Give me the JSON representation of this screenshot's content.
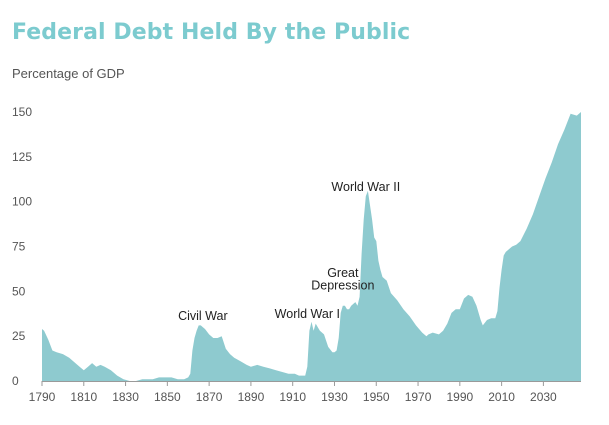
{
  "header": {
    "title": "Federal Debt Held By the Public"
  },
  "chart_data": {
    "type": "area",
    "title": "Federal Debt Held By the Public",
    "ylabel": "Percentage of GDP",
    "xlabel": "",
    "xlim": [
      1790,
      2048
    ],
    "ylim": [
      0,
      150
    ],
    "xticks": [
      1790,
      1810,
      1830,
      1850,
      1870,
      1890,
      1910,
      1930,
      1950,
      1970,
      1990,
      2010,
      2030
    ],
    "yticks": [
      0,
      25,
      50,
      75,
      100,
      125,
      150
    ],
    "grid": false,
    "legend": "none",
    "color": "#8ecacf",
    "annotations": [
      {
        "text": "World War II",
        "x": 1945,
        "y": 106
      },
      {
        "text": "Great",
        "x": 1934,
        "y": 58
      },
      {
        "text": "Depression",
        "x": 1934,
        "y": 51
      },
      {
        "text": "Civil War",
        "x": 1867,
        "y": 34
      },
      {
        "text": "World War I",
        "x": 1917,
        "y": 35
      }
    ],
    "series": [
      {
        "x": [
          1790,
          1791,
          1793,
          1795,
          1797,
          1800,
          1803,
          1806,
          1808,
          1810,
          1812,
          1814,
          1816,
          1818,
          1820,
          1823,
          1826,
          1829,
          1832,
          1835,
          1838,
          1841,
          1843,
          1846,
          1849,
          1852,
          1855,
          1858,
          1860,
          1861,
          1862,
          1863,
          1864,
          1865,
          1866,
          1867,
          1868,
          1870,
          1872,
          1874,
          1876,
          1878,
          1880,
          1882,
          1885,
          1888,
          1890,
          1893,
          1896,
          1899,
          1902,
          1905,
          1908,
          1911,
          1913,
          1915,
          1916,
          1917,
          1918,
          1919,
          1920,
          1921,
          1922,
          1923,
          1925,
          1927,
          1929,
          1930,
          1931,
          1932,
          1933,
          1934,
          1935,
          1936,
          1937,
          1938,
          1939,
          1940,
          1941,
          1942,
          1943,
          1944,
          1945,
          1946,
          1947,
          1948,
          1949,
          1950,
          1951,
          1952,
          1953,
          1955,
          1957,
          1960,
          1963,
          1966,
          1969,
          1972,
          1974,
          1975,
          1977,
          1980,
          1982,
          1984,
          1986,
          1988,
          1990,
          1992,
          1994,
          1996,
          1998,
          2000,
          2001,
          2003,
          2005,
          2007,
          2008,
          2009,
          2010,
          2011,
          2012,
          2013,
          2015,
          2017,
          2019,
          2022,
          2025,
          2028,
          2031,
          2034,
          2037,
          2040,
          2043,
          2046,
          2048
        ],
        "values": [
          29,
          28,
          23,
          17,
          16,
          15,
          13,
          10,
          8,
          6,
          8,
          10,
          8,
          9,
          8,
          6,
          3,
          1,
          0,
          0,
          1,
          1,
          1,
          2,
          2,
          2,
          1,
          1,
          2,
          4,
          17,
          24,
          28,
          31,
          31,
          30,
          29,
          26,
          24,
          24,
          25,
          18,
          15,
          13,
          11,
          9,
          8,
          9,
          8,
          7,
          6,
          5,
          4,
          4,
          3,
          3,
          3,
          8,
          28,
          33,
          28,
          32,
          30,
          28,
          26,
          19,
          16,
          16,
          17,
          24,
          38,
          42,
          42,
          40,
          40,
          42,
          43,
          44,
          42,
          47,
          71,
          90,
          103,
          106,
          98,
          90,
          80,
          78,
          67,
          62,
          58,
          56,
          49,
          45,
          40,
          36,
          31,
          27,
          25,
          26,
          27,
          26,
          28,
          32,
          38,
          40,
          40,
          46,
          48,
          47,
          42,
          34,
          31,
          34,
          35,
          35,
          39,
          52,
          62,
          70,
          72,
          73,
          75,
          76,
          78,
          85,
          93,
          103,
          113,
          122,
          132,
          140,
          149,
          148,
          150
        ]
      }
    ]
  }
}
